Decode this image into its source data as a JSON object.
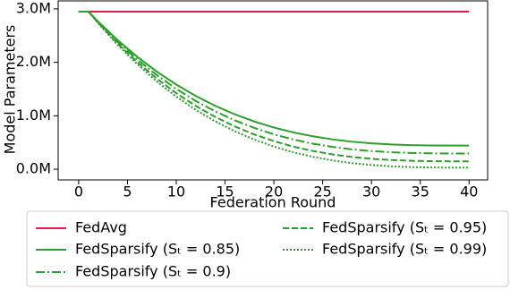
{
  "chart_data": {
    "type": "line",
    "xlabel": "Federation Round",
    "ylabel": "Model Parameters",
    "x": [
      0,
      1,
      2,
      4,
      6,
      8,
      10,
      12,
      14,
      16,
      18,
      20,
      22,
      24,
      26,
      28,
      30,
      32,
      34,
      36,
      38,
      40
    ],
    "series": [
      {
        "name": "FedAvg",
        "color": "#e6194b",
        "linestyle": "solid",
        "values": [
          2950000,
          2950000,
          2950000,
          2950000,
          2950000,
          2950000,
          2950000,
          2950000,
          2950000,
          2950000,
          2950000,
          2950000,
          2950000,
          2950000,
          2950000,
          2950000,
          2950000,
          2950000,
          2950000,
          2950000,
          2950000,
          2950000
        ]
      },
      {
        "name": "FedSparsify (Sₜ = 0.85)",
        "color": "#2ca02c",
        "linestyle": "solid",
        "values": [
          2950000,
          2950000,
          2761000,
          2415000,
          2104000,
          1828000,
          1584000,
          1370000,
          1186000,
          1027000,
          893000,
          781000,
          689000,
          616000,
          559000,
          515000,
          485000,
          464000,
          452000,
          445000,
          443000,
          443000
        ]
      },
      {
        "name": "FedSparsify (Sₜ = 0.9)",
        "color": "#2ca02c",
        "linestyle": "dashdot",
        "values": [
          2950000,
          2950000,
          2751000,
          2383000,
          2054000,
          1762000,
          1504000,
          1277000,
          1082000,
          914000,
          772000,
          653000,
          556000,
          478000,
          418000,
          372000,
          340000,
          318000,
          305000,
          298000,
          295000,
          295000
        ]
      },
      {
        "name": "FedSparsify (Sₜ = 0.95)",
        "color": "#2ca02c",
        "linestyle": "dashed",
        "values": [
          2950000,
          2950000,
          2740000,
          2352000,
          2004000,
          1696000,
          1423000,
          1184000,
          978000,
          801000,
          650000,
          526000,
          423000,
          341000,
          277000,
          229000,
          195000,
          172000,
          158000,
          151000,
          148000,
          148000
        ]
      },
      {
        "name": "FedSparsify (Sₜ = 0.99)",
        "color": "#2ca02c",
        "linestyle": "dotted",
        "values": [
          2950000,
          2950000,
          2731000,
          2327000,
          1965000,
          1643000,
          1359000,
          1110000,
          895000,
          710000,
          554000,
          424000,
          317000,
          231000,
          165000,
          114000,
          79000,
          55000,
          40000,
          33000,
          30000,
          30000
        ]
      }
    ],
    "xlim": [
      -2.1,
      41.9
    ],
    "xticks": [
      0,
      5,
      10,
      15,
      20,
      25,
      30,
      35,
      40
    ],
    "ylim": [
      -200000,
      3150000
    ],
    "yticks": [
      {
        "value": 0,
        "label": "0.0M"
      },
      {
        "value": 1000000,
        "label": "1.0M"
      },
      {
        "value": 2000000,
        "label": "2.0M"
      },
      {
        "value": 3000000,
        "label": "3.0M"
      }
    ],
    "grid": false,
    "legend": "bottom"
  }
}
